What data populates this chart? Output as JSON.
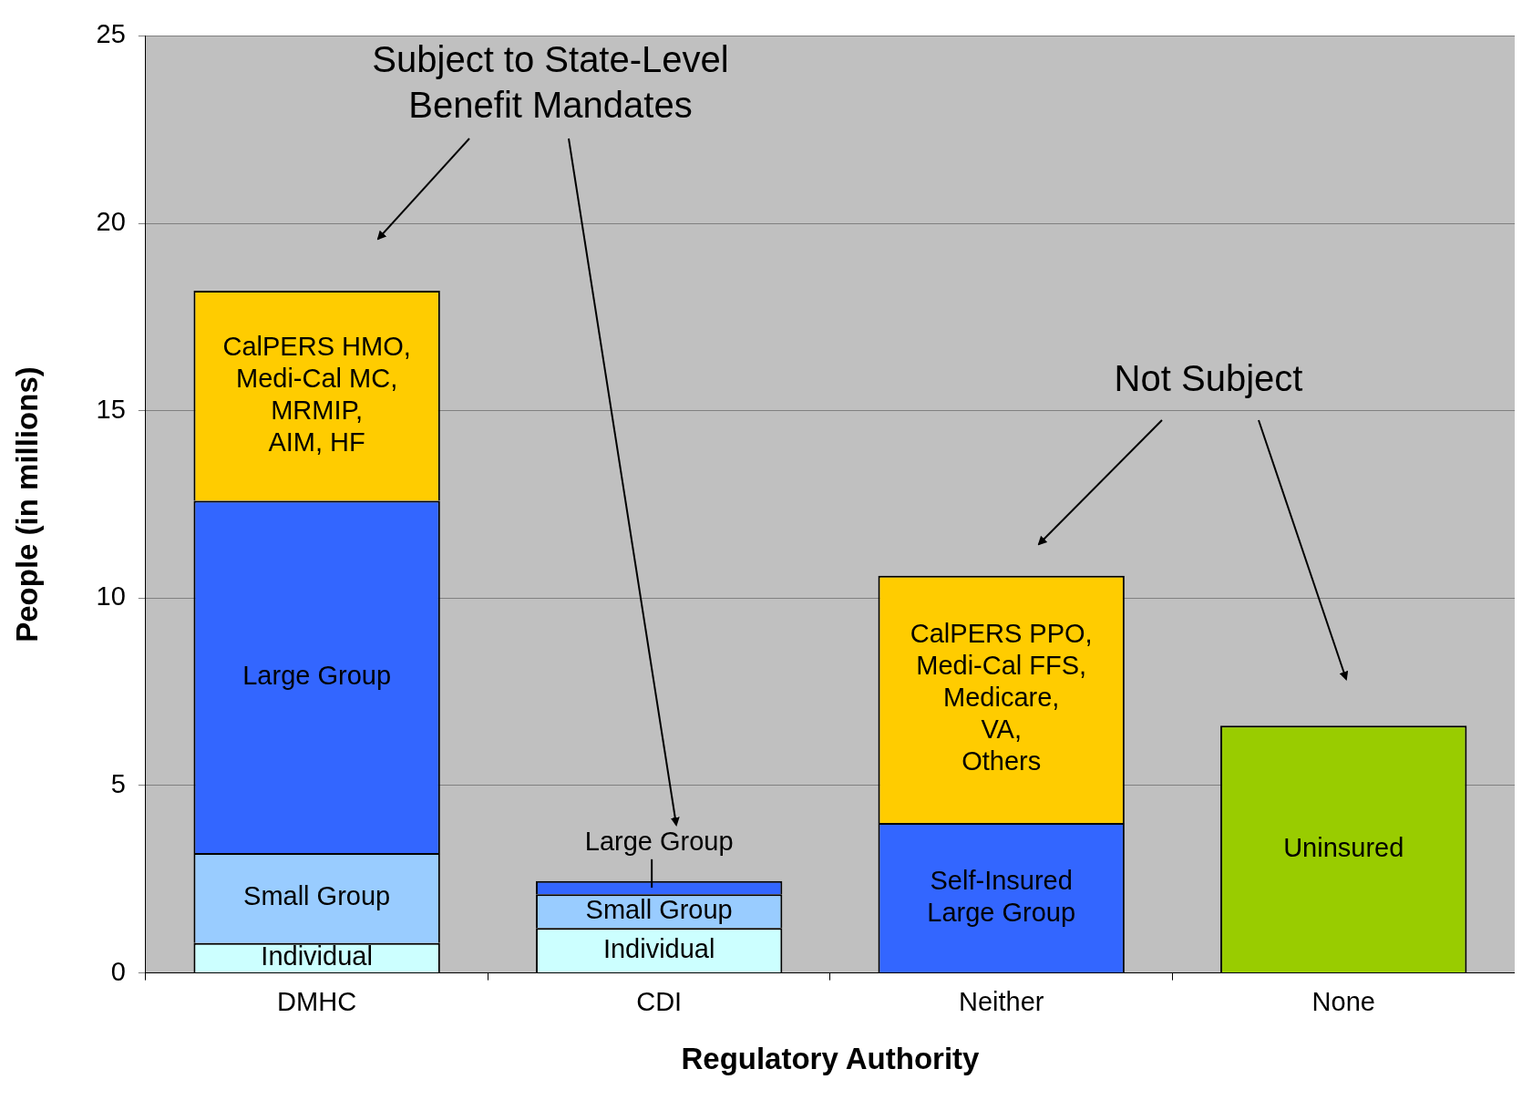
{
  "chart_data": {
    "type": "bar",
    "stacked": true,
    "xlabel": "Regulatory Authority",
    "ylabel": "People (in millions)",
    "categories": [
      "DMHC",
      "CDI",
      "Neither",
      "None"
    ],
    "series": [
      {
        "name": "Individual",
        "color": "#ccffff",
        "values": [
          0.8,
          1.2,
          null,
          null
        ]
      },
      {
        "name": "Small Group",
        "color": "#99ccff",
        "values": [
          2.4,
          0.9,
          null,
          null
        ]
      },
      {
        "name": "Large Group",
        "color": "#3366ff",
        "values": [
          9.4,
          0.35,
          null,
          null
        ]
      },
      {
        "name": "Self-Insured\nLarge Group",
        "color": "#3366ff",
        "values": [
          null,
          null,
          4.0,
          null
        ]
      },
      {
        "name": "CalPERS HMO,\nMedi-Cal MC,\nMRMIP,\nAIM, HF",
        "color": "#ffcc00",
        "values": [
          5.6,
          null,
          null,
          null
        ]
      },
      {
        "name": "CalPERS PPO,\nMedi-Cal FFS,\nMedicare,\nVA,\nOthers",
        "color": "#ffcc00",
        "values": [
          null,
          null,
          6.6,
          null
        ]
      },
      {
        "name": "Uninsured",
        "color": "#99cc00",
        "values": [
          null,
          null,
          null,
          6.6
        ]
      }
    ],
    "ylim": [
      0,
      25
    ],
    "yticks": [
      0,
      5,
      10,
      15,
      20,
      25
    ],
    "grid": "y",
    "legend": false,
    "annotations": [
      "Subject to State-Level\nBenefit Mandates",
      "Not Subject"
    ]
  }
}
